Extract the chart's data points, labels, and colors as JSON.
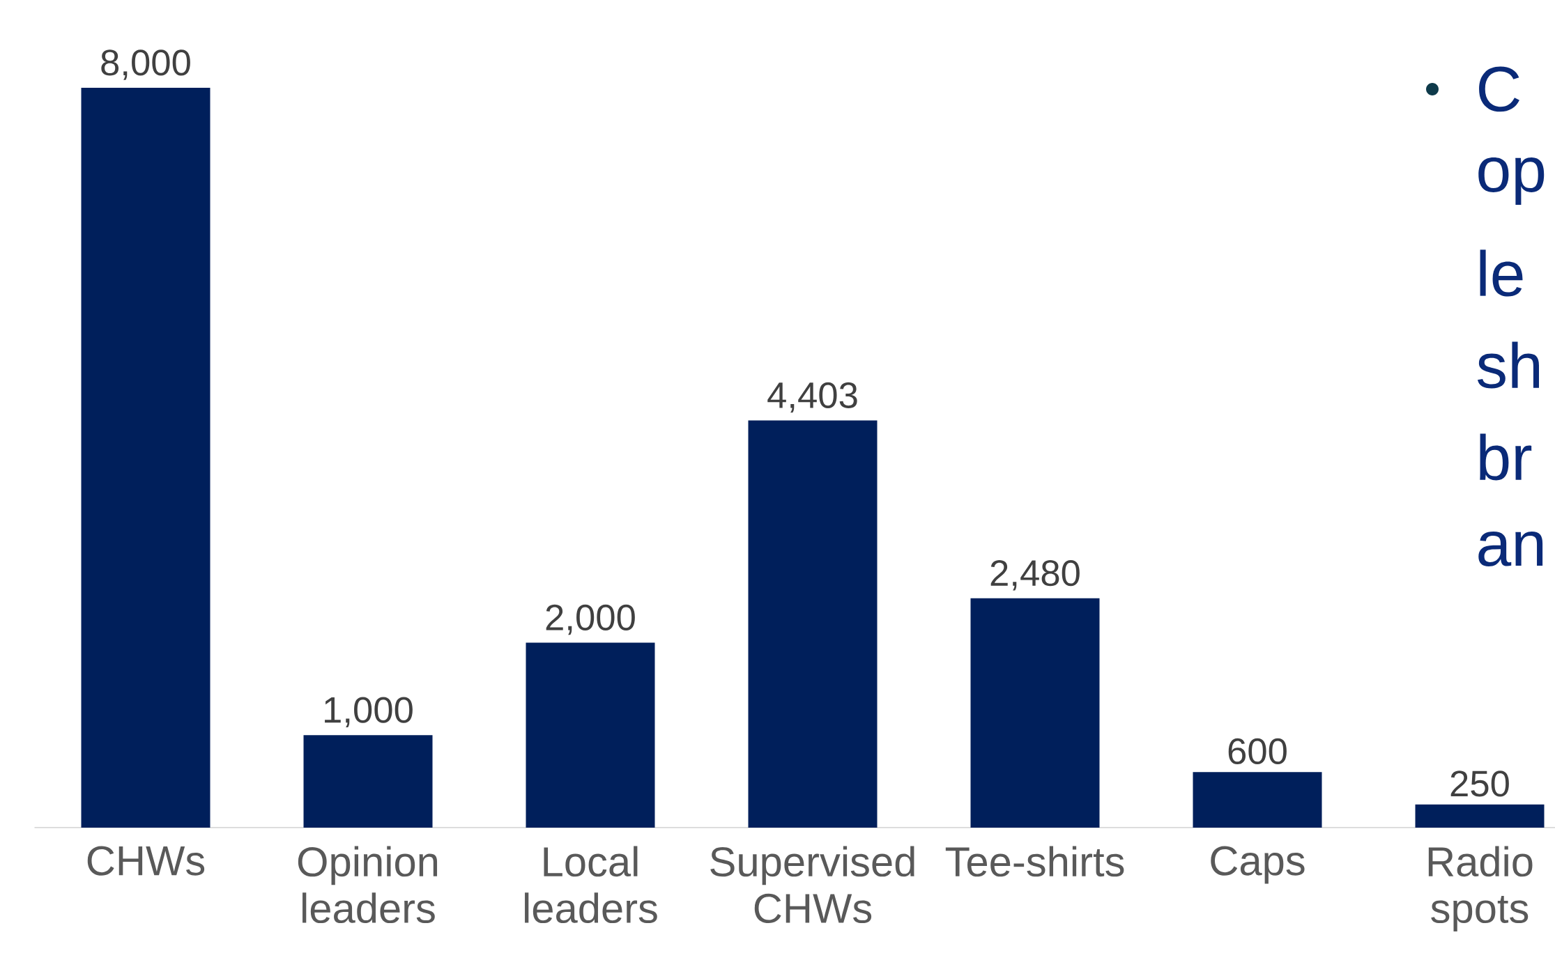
{
  "chart_data": {
    "type": "bar",
    "categories": [
      "CHWs",
      "Opinion leaders",
      "Local leaders",
      "Supervised CHWs",
      "Tee-shirts",
      "Caps",
      "Radio spots"
    ],
    "values": [
      8000,
      1000,
      2000,
      4403,
      2480,
      600,
      250
    ],
    "color": "#001f5b",
    "value_labels": [
      "8,000",
      "1,000",
      "2,000",
      "4,403",
      "2,480",
      "600",
      "250"
    ],
    "annotations": [
      "C",
      "op",
      "le",
      "sh",
      "br",
      "an"
    ]
  }
}
